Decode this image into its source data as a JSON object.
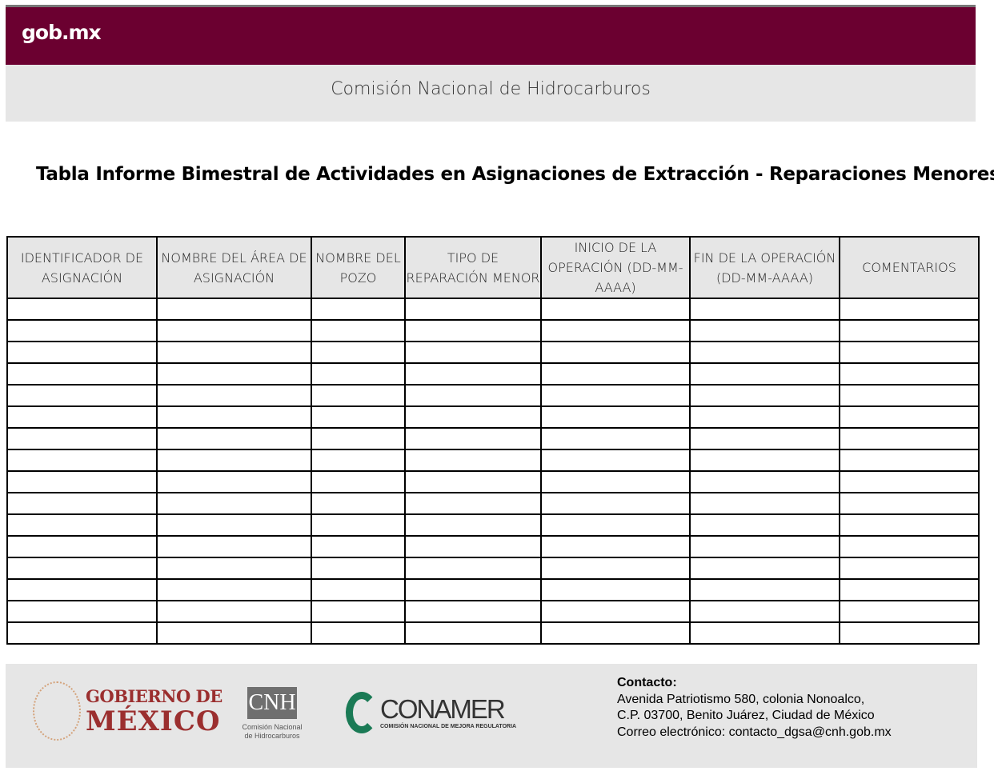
{
  "header": {
    "logo": "gob.mx",
    "brand_color": "#6b0030",
    "subtitle": "Comisión Nacional de Hidrocarburos"
  },
  "title": "Tabla Informe Bimestral de Actividades en Asignaciones de Extracción - Reparaciones Menores",
  "table": {
    "columns": [
      "IDENTIFICADOR DE ASIGNACIÓN",
      "NOMBRE DEL ÁREA DE ASIGNACIÓN",
      "NOMBRE DEL POZO",
      "TIPO DE REPARACIÓN MENOR",
      "INICIO DE LA OPERACIÓN (DD-MM-AAAA)",
      "FIN DE LA OPERACIÓN (DD-MM-AAAA)",
      "COMENTARIOS"
    ],
    "empty_rows": 16
  },
  "footer": {
    "gobierno_line1": "GOBIERNO DE",
    "gobierno_line2": "MÉXICO",
    "seal_text": "ESTADOS UNIDOS MEXICANOS",
    "cnh_logo": "CNH",
    "cnh_sub": "Comisión Nacional de Hidrocarburos",
    "conamer_logo": "CONAMER",
    "conamer_sub": "COMISIÓN NACIONAL DE MEJORA REGULATORIA",
    "contact_title": "Contacto:",
    "contact_lines": [
      "Avenida Patriotismo 580, colonia Nonoalco,",
      "C.P. 03700, Benito Juárez, Ciudad de México",
      "Correo electrónico: contacto_dgsa@cnh.gob.mx"
    ]
  }
}
